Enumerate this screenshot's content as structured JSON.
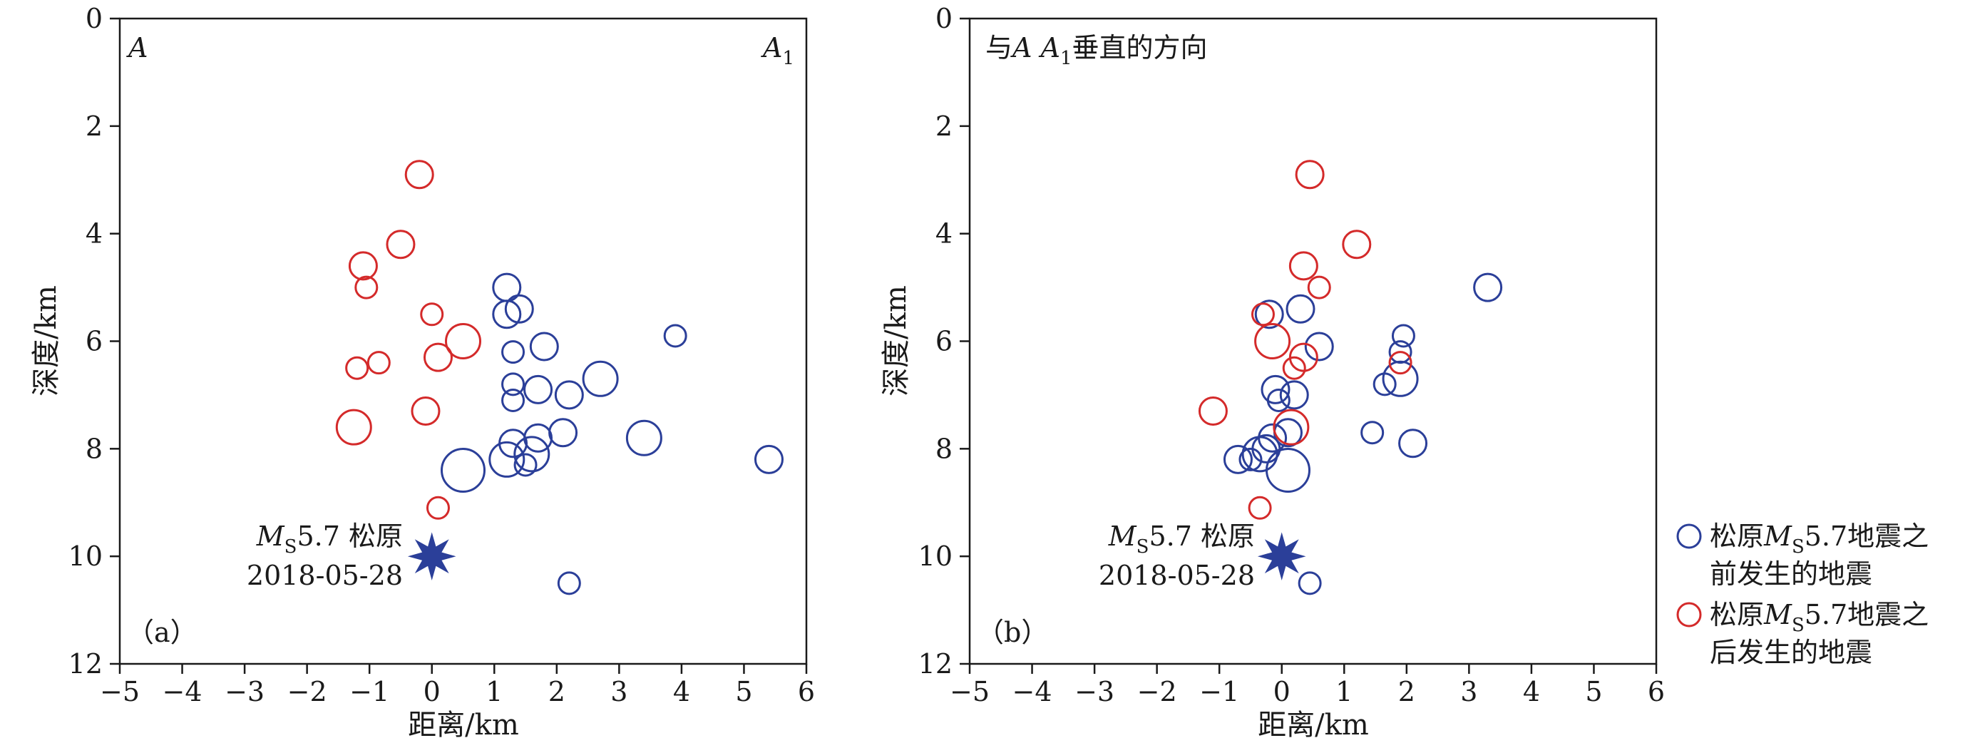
{
  "chart_data": [
    {
      "type": "scatter",
      "panel_label": "（a）",
      "corner_left": "A",
      "corner_right": "A",
      "corner_right_sub": "1",
      "xlabel": "距离/km",
      "ylabel": "深度/km",
      "xlim": [
        -5,
        6
      ],
      "ylim": [
        0,
        12
      ],
      "y_inverted": true,
      "xticks": [
        -5,
        -4,
        -3,
        -2,
        -1,
        0,
        1,
        2,
        3,
        4,
        5,
        6
      ],
      "yticks": [
        0,
        2,
        4,
        6,
        8,
        10,
        12
      ],
      "mainshock": {
        "x": 0,
        "y": 10,
        "label_m": "M",
        "label_sub": "S",
        "label_rest": "5.7 松原",
        "date": "2018-05-28"
      },
      "series": [
        {
          "name": "松原MS5.7地震之前发生的地震",
          "color": "#2b3f99",
          "points": [
            {
              "x": 1.2,
              "y": 5.0,
              "m": 2
            },
            {
              "x": 1.2,
              "y": 5.5,
              "m": 2
            },
            {
              "x": 1.4,
              "y": 5.4,
              "m": 2
            },
            {
              "x": 1.3,
              "y": 6.2,
              "m": 1
            },
            {
              "x": 1.8,
              "y": 6.1,
              "m": 2
            },
            {
              "x": 1.3,
              "y": 6.8,
              "m": 1
            },
            {
              "x": 1.3,
              "y": 7.1,
              "m": 1
            },
            {
              "x": 1.7,
              "y": 6.9,
              "m": 2
            },
            {
              "x": 2.2,
              "y": 7.0,
              "m": 2
            },
            {
              "x": 2.7,
              "y": 6.7,
              "m": 3
            },
            {
              "x": 3.9,
              "y": 5.9,
              "m": 1
            },
            {
              "x": 3.4,
              "y": 7.8,
              "m": 3
            },
            {
              "x": 2.1,
              "y": 7.7,
              "m": 2
            },
            {
              "x": 1.7,
              "y": 7.8,
              "m": 2
            },
            {
              "x": 1.6,
              "y": 8.1,
              "m": 3
            },
            {
              "x": 1.3,
              "y": 7.9,
              "m": 2
            },
            {
              "x": 1.2,
              "y": 8.2,
              "m": 3
            },
            {
              "x": 1.5,
              "y": 8.3,
              "m": 1
            },
            {
              "x": 0.5,
              "y": 8.4,
              "m": 4
            },
            {
              "x": 5.4,
              "y": 8.2,
              "m": 2
            },
            {
              "x": 2.2,
              "y": 10.5,
              "m": 1
            }
          ]
        },
        {
          "name": "松原MS5.7地震之后发生的地震",
          "color": "#d42a2a",
          "points": [
            {
              "x": -0.2,
              "y": 2.9,
              "m": 2
            },
            {
              "x": -0.5,
              "y": 4.2,
              "m": 2
            },
            {
              "x": -1.1,
              "y": 4.6,
              "m": 2
            },
            {
              "x": -1.05,
              "y": 5.0,
              "m": 1
            },
            {
              "x": 0.0,
              "y": 5.5,
              "m": 1
            },
            {
              "x": 0.5,
              "y": 6.0,
              "m": 3
            },
            {
              "x": -0.85,
              "y": 6.4,
              "m": 1
            },
            {
              "x": -1.2,
              "y": 6.5,
              "m": 1
            },
            {
              "x": 0.1,
              "y": 6.3,
              "m": 2
            },
            {
              "x": -0.1,
              "y": 7.3,
              "m": 2
            },
            {
              "x": -1.25,
              "y": 7.6,
              "m": 3
            },
            {
              "x": 0.1,
              "y": 9.1,
              "m": 1
            }
          ]
        }
      ]
    },
    {
      "type": "scatter",
      "panel_label": "（b）",
      "corner_title_a": "与",
      "corner_title_b": "A A",
      "corner_title_sub": "1",
      "corner_title_c": "垂直的方向",
      "xlabel": "距离/km",
      "ylabel": "深度/km",
      "xlim": [
        -5,
        6
      ],
      "ylim": [
        0,
        12
      ],
      "y_inverted": true,
      "xticks": [
        -5,
        -4,
        -3,
        -2,
        -1,
        0,
        1,
        2,
        3,
        4,
        5,
        6
      ],
      "yticks": [
        0,
        2,
        4,
        6,
        8,
        10,
        12
      ],
      "mainshock": {
        "x": 0,
        "y": 10,
        "label_m": "M",
        "label_sub": "S",
        "label_rest": "5.7 松原",
        "date": "2018-05-28"
      },
      "series": [
        {
          "name": "松原MS5.7地震之前发生的地震",
          "color": "#2b3f99",
          "points": [
            {
              "x": 3.3,
              "y": 5.0,
              "m": 2
            },
            {
              "x": -0.2,
              "y": 5.5,
              "m": 2
            },
            {
              "x": 0.3,
              "y": 5.4,
              "m": 2
            },
            {
              "x": 0.6,
              "y": 6.1,
              "m": 2
            },
            {
              "x": 1.95,
              "y": 5.9,
              "m": 1
            },
            {
              "x": 1.9,
              "y": 6.2,
              "m": 1
            },
            {
              "x": 1.9,
              "y": 6.7,
              "m": 3
            },
            {
              "x": 1.65,
              "y": 6.8,
              "m": 1
            },
            {
              "x": -0.1,
              "y": 6.9,
              "m": 2
            },
            {
              "x": -0.05,
              "y": 7.1,
              "m": 1
            },
            {
              "x": 0.2,
              "y": 7.0,
              "m": 2
            },
            {
              "x": 1.45,
              "y": 7.7,
              "m": 1
            },
            {
              "x": 2.1,
              "y": 7.9,
              "m": 2
            },
            {
              "x": 0.1,
              "y": 7.7,
              "m": 2
            },
            {
              "x": -0.15,
              "y": 7.8,
              "m": 2
            },
            {
              "x": -0.25,
              "y": 8.0,
              "m": 2
            },
            {
              "x": -0.35,
              "y": 8.1,
              "m": 3
            },
            {
              "x": -0.5,
              "y": 8.2,
              "m": 1
            },
            {
              "x": -0.7,
              "y": 8.2,
              "m": 2
            },
            {
              "x": 0.1,
              "y": 8.4,
              "m": 4
            },
            {
              "x": 0.45,
              "y": 10.5,
              "m": 1
            }
          ]
        },
        {
          "name": "松原MS5.7地震之后发生的地震",
          "color": "#d42a2a",
          "points": [
            {
              "x": 0.45,
              "y": 2.9,
              "m": 2
            },
            {
              "x": 1.2,
              "y": 4.2,
              "m": 2
            },
            {
              "x": 0.35,
              "y": 4.6,
              "m": 2
            },
            {
              "x": 0.6,
              "y": 5.0,
              "m": 1
            },
            {
              "x": -0.3,
              "y": 5.5,
              "m": 1
            },
            {
              "x": -0.15,
              "y": 6.0,
              "m": 3
            },
            {
              "x": 0.35,
              "y": 6.3,
              "m": 2
            },
            {
              "x": 0.2,
              "y": 6.5,
              "m": 1
            },
            {
              "x": 1.9,
              "y": 6.4,
              "m": 1
            },
            {
              "x": -1.1,
              "y": 7.3,
              "m": 2
            },
            {
              "x": 0.15,
              "y": 7.6,
              "m": 3
            },
            {
              "x": -0.35,
              "y": 9.1,
              "m": 1
            }
          ]
        }
      ]
    }
  ],
  "legend": {
    "items": [
      {
        "pre": "松原",
        "m": "M",
        "sub": "S",
        "post": "5.7地震之",
        "line2": "前发生的地震",
        "color": "#2b3f99"
      },
      {
        "pre": "松原",
        "m": "M",
        "sub": "S",
        "post": "5.7地震之",
        "line2": "后发生的地震",
        "color": "#d42a2a"
      }
    ]
  }
}
